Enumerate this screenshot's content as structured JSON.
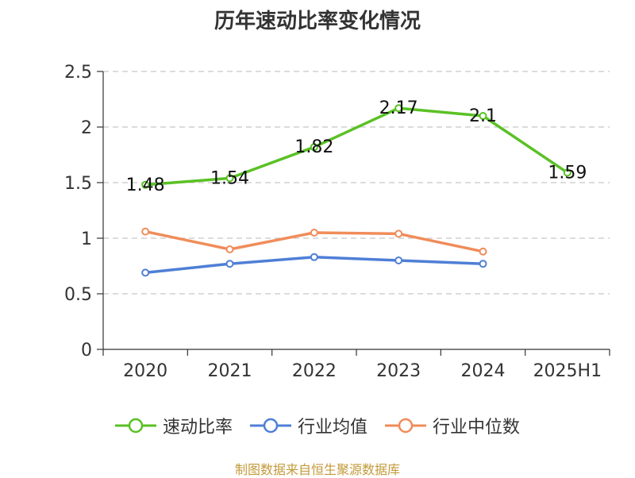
{
  "title": "历年速动比率变化情况",
  "source": "制图数据来自恒生聚源数据库",
  "chart_data": {
    "type": "line",
    "categories": [
      "2020",
      "2021",
      "2022",
      "2023",
      "2024",
      "2025H1"
    ],
    "ylim": [
      0,
      2.5
    ],
    "yticks": [
      0,
      0.5,
      1,
      1.5,
      2,
      2.5
    ],
    "ytick_labels": [
      "0",
      "0.5",
      "1",
      "1.5",
      "2",
      "2.5"
    ],
    "grid": true,
    "legend_position": "bottom",
    "series": [
      {
        "name": "速动比率",
        "color": "#5ac125",
        "values": [
          1.48,
          1.54,
          1.82,
          2.17,
          2.1,
          1.59
        ],
        "labels": [
          "1.48",
          "1.54",
          "1.82",
          "2.17",
          "2.1",
          "1.59"
        ]
      },
      {
        "name": "行业均值",
        "color": "#4f7fd6",
        "values": [
          0.69,
          0.77,
          0.83,
          0.8,
          0.77,
          null
        ]
      },
      {
        "name": "行业中位数",
        "color": "#f08c5a",
        "values": [
          1.06,
          0.9,
          1.05,
          1.04,
          0.88,
          null
        ]
      }
    ]
  }
}
